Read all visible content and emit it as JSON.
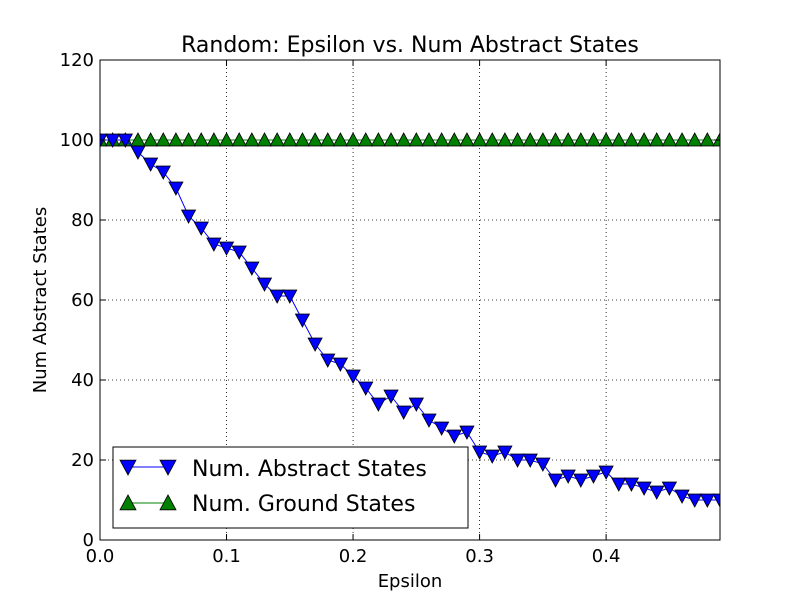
{
  "chart_data": {
    "type": "line",
    "title": "Random: Epsilon vs. Num Abstract States",
    "xlabel": "Epsilon",
    "ylabel": "Num Abstract States",
    "xlim": [
      0.0,
      0.49
    ],
    "ylim": [
      0,
      120
    ],
    "grid": true,
    "legend_position": "lower-left",
    "x_ticks": [
      0.0,
      0.1,
      0.2,
      0.3,
      0.4
    ],
    "x_tick_labels": [
      "0.0",
      "0.1",
      "0.2",
      "0.3",
      "0.4"
    ],
    "y_ticks": [
      0,
      20,
      40,
      60,
      80,
      100,
      120
    ],
    "y_tick_labels": [
      "0",
      "20",
      "40",
      "60",
      "80",
      "100",
      "120"
    ],
    "x": [
      0.0,
      0.01,
      0.02,
      0.03,
      0.04,
      0.05,
      0.06,
      0.07,
      0.08,
      0.09,
      0.1,
      0.11,
      0.12,
      0.13,
      0.14,
      0.15,
      0.16,
      0.17,
      0.18,
      0.19,
      0.2,
      0.21,
      0.22,
      0.23,
      0.24,
      0.25,
      0.26,
      0.27,
      0.28,
      0.29,
      0.3,
      0.31,
      0.32,
      0.33,
      0.34,
      0.35,
      0.36,
      0.37,
      0.38,
      0.39,
      0.4,
      0.41,
      0.42,
      0.43,
      0.44,
      0.45,
      0.46,
      0.47,
      0.48,
      0.49
    ],
    "series": [
      {
        "name": "Num. Abstract States",
        "color": "#0000ff",
        "marker": "triangle-down",
        "values": [
          100,
          100,
          100,
          97,
          94,
          92,
          88,
          81,
          78,
          74,
          73,
          72,
          68,
          64,
          61,
          61,
          55,
          49,
          45,
          44,
          41,
          38,
          34,
          36,
          32,
          34,
          30,
          28,
          26,
          27,
          22,
          21,
          22,
          20,
          20,
          19,
          15,
          16,
          15,
          16,
          17,
          14,
          14,
          13,
          12,
          13,
          11,
          10,
          10,
          10
        ]
      },
      {
        "name": "Num. Ground States",
        "color": "#008000",
        "marker": "triangle-up",
        "values": [
          100,
          100,
          100,
          100,
          100,
          100,
          100,
          100,
          100,
          100,
          100,
          100,
          100,
          100,
          100,
          100,
          100,
          100,
          100,
          100,
          100,
          100,
          100,
          100,
          100,
          100,
          100,
          100,
          100,
          100,
          100,
          100,
          100,
          100,
          100,
          100,
          100,
          100,
          100,
          100,
          100,
          100,
          100,
          100,
          100,
          100,
          100,
          100,
          100,
          100
        ]
      }
    ]
  }
}
